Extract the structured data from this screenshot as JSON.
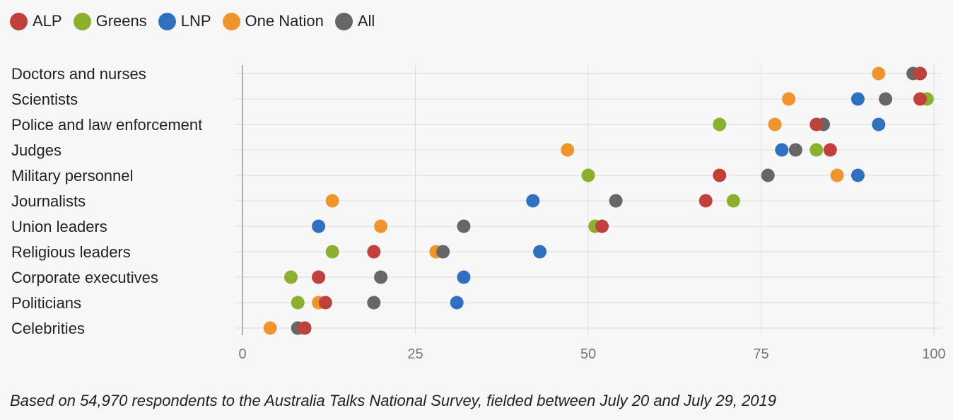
{
  "legend": {
    "items": [
      {
        "label": "ALP",
        "color": "#c0403c"
      },
      {
        "label": "Greens",
        "color": "#8bb02e"
      },
      {
        "label": "LNP",
        "color": "#3070c0"
      },
      {
        "label": "One Nation",
        "color": "#f0952e"
      },
      {
        "label": "All",
        "color": "#666666"
      }
    ]
  },
  "footnote": "Based on 54,970 respondents to the Australia Talks National Survey, fielded between July 20 and July 29, 2019",
  "chart_data": {
    "type": "scatter",
    "orientation": "horizontal-dot-plot",
    "categories": [
      "Doctors and nurses",
      "Scientists",
      "Police and law enforcement",
      "Judges",
      "Military personnel",
      "Journalists",
      "Union leaders",
      "Religious leaders",
      "Corporate executives",
      "Politicians",
      "Celebrities"
    ],
    "xlim": [
      0,
      100
    ],
    "xticks": [
      0,
      25,
      50,
      75,
      100
    ],
    "grid": true,
    "legend_position": "top-left",
    "series": [
      {
        "name": "ALP",
        "color": "#c0403c",
        "values": [
          98,
          98,
          83,
          85,
          69,
          67,
          52,
          19,
          11,
          12,
          9
        ]
      },
      {
        "name": "Greens",
        "color": "#8bb02e",
        "values": [
          98,
          99,
          69,
          83,
          50,
          71,
          51,
          13,
          7,
          8,
          9
        ]
      },
      {
        "name": "LNP",
        "color": "#3070c0",
        "values": [
          98,
          89,
          92,
          78,
          89,
          42,
          11,
          43,
          32,
          31,
          8
        ]
      },
      {
        "name": "One Nation",
        "color": "#f0952e",
        "values": [
          92,
          79,
          77,
          47,
          86,
          13,
          20,
          28,
          11,
          11,
          4
        ]
      },
      {
        "name": "All",
        "color": "#666666",
        "values": [
          97,
          93,
          84,
          80,
          76,
          54,
          32,
          29,
          20,
          19,
          8
        ]
      }
    ]
  }
}
